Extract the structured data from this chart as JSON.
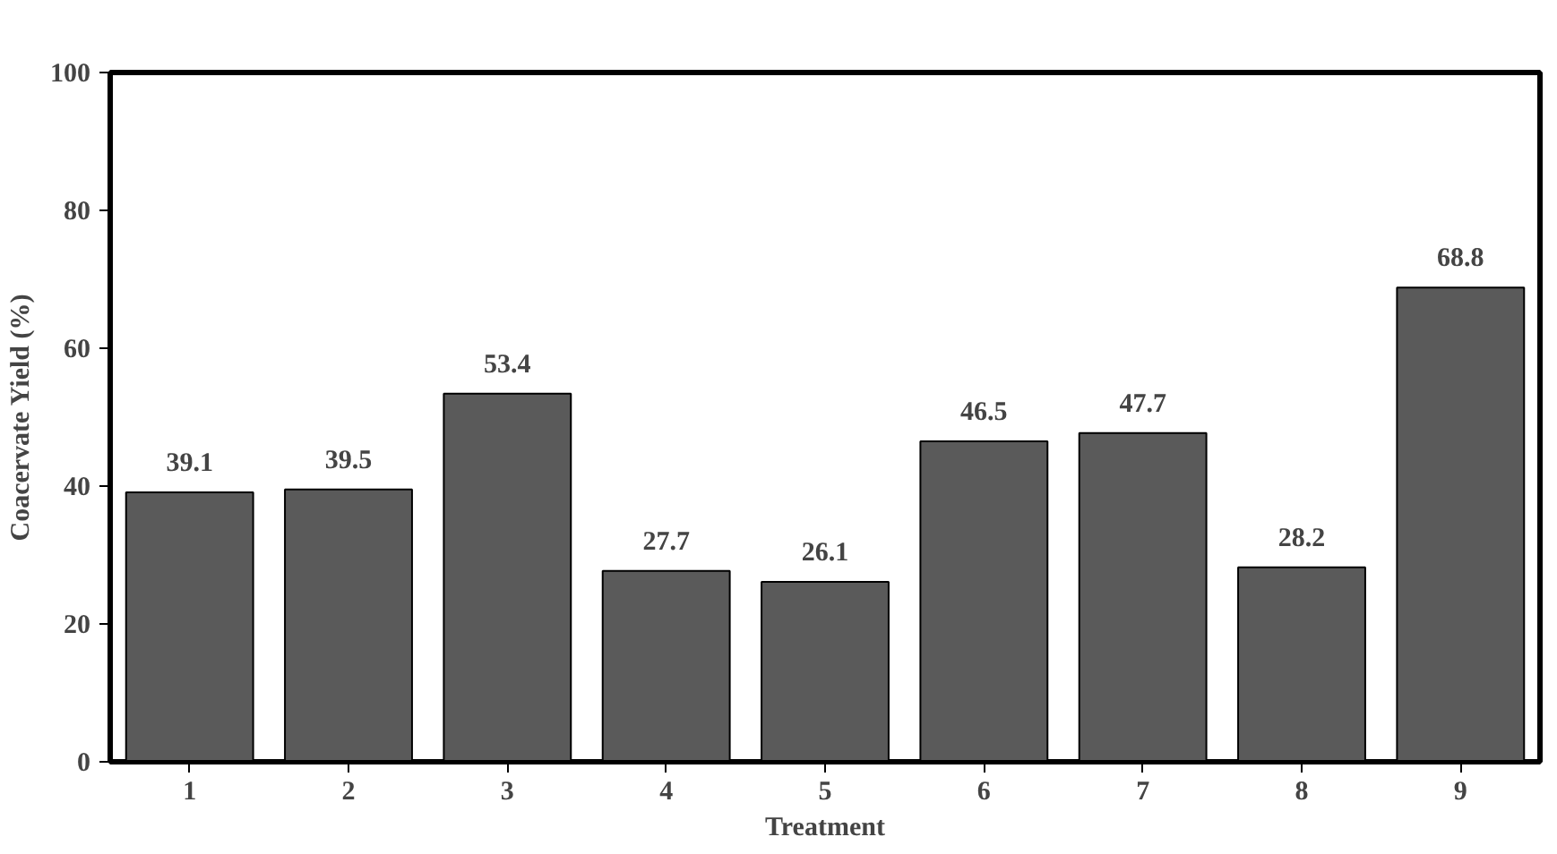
{
  "chart_data": {
    "type": "bar",
    "xlabel": "Treatment",
    "ylabel": "Coacervate Yield (%)",
    "categories": [
      "1",
      "2",
      "3",
      "4",
      "5",
      "6",
      "7",
      "8",
      "9"
    ],
    "values": [
      39.1,
      39.5,
      53.4,
      27.7,
      26.1,
      46.5,
      47.7,
      28.2,
      68.8
    ],
    "color": "#5a5a5a",
    "ylim": [
      0,
      100
    ],
    "yticks": [
      0,
      20,
      40,
      60,
      80,
      100
    ],
    "grid": false,
    "data_labels": true
  }
}
